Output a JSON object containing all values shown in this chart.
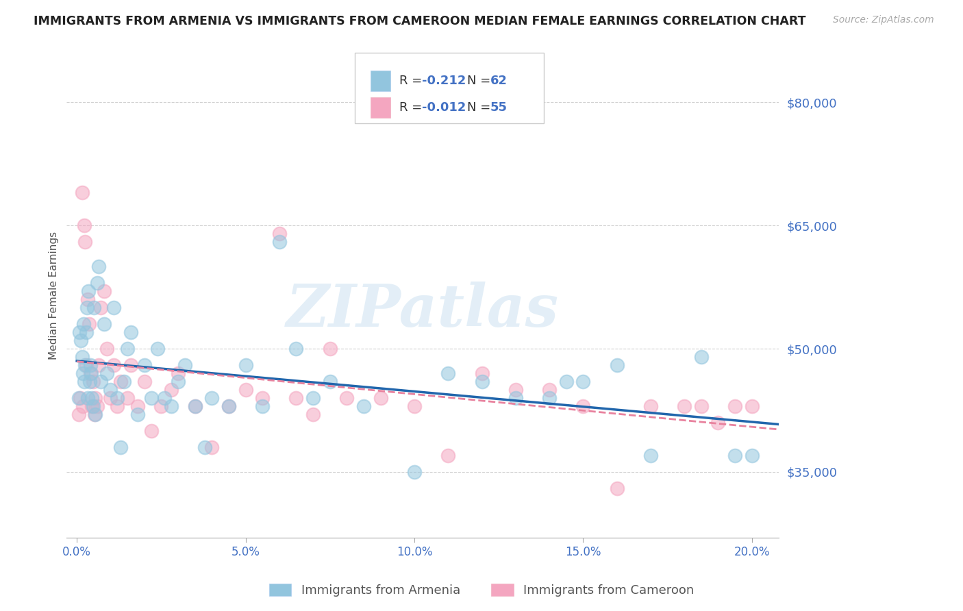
{
  "title": "IMMIGRANTS FROM ARMENIA VS IMMIGRANTS FROM CAMEROON MEDIAN FEMALE EARNINGS CORRELATION CHART",
  "source": "Source: ZipAtlas.com",
  "ylabel": "Median Female Earnings",
  "xlabel_ticks": [
    "0.0%",
    "5.0%",
    "10.0%",
    "15.0%",
    "20.0%"
  ],
  "xlabel_vals": [
    0.0,
    5.0,
    10.0,
    15.0,
    20.0
  ],
  "ytick_vals": [
    35000,
    50000,
    65000,
    80000
  ],
  "ytick_labels": [
    "$35,000",
    "$50,000",
    "$65,000",
    "$80,000"
  ],
  "ymin": 27000,
  "ymax": 86000,
  "xmin": -0.3,
  "xmax": 20.8,
  "armenia_color": "#92c5de",
  "cameroon_color": "#f4a6c0",
  "armenia_line_color": "#2166ac",
  "cameroon_line_color": "#e8829e",
  "armenia_R": -0.212,
  "armenia_N": 62,
  "cameroon_R": -0.012,
  "cameroon_N": 55,
  "legend_label_armenia": "Immigrants from Armenia",
  "legend_label_cameroon": "Immigrants from Cameroon",
  "watermark": "ZIPatlas",
  "legend_text_color": "#4472c4",
  "armenia_scatter_x": [
    0.05,
    0.08,
    0.12,
    0.15,
    0.18,
    0.2,
    0.22,
    0.25,
    0.28,
    0.3,
    0.32,
    0.35,
    0.38,
    0.4,
    0.42,
    0.45,
    0.48,
    0.5,
    0.55,
    0.6,
    0.65,
    0.7,
    0.8,
    0.9,
    1.0,
    1.1,
    1.2,
    1.3,
    1.4,
    1.5,
    1.6,
    1.8,
    2.0,
    2.2,
    2.4,
    2.6,
    2.8,
    3.0,
    3.2,
    3.5,
    3.8,
    4.0,
    4.5,
    5.0,
    5.5,
    6.0,
    6.5,
    7.0,
    7.5,
    8.5,
    10.0,
    11.0,
    12.0,
    13.0,
    14.0,
    14.5,
    15.0,
    16.0,
    17.0,
    18.5,
    19.5,
    20.0
  ],
  "armenia_scatter_y": [
    44000,
    52000,
    51000,
    49000,
    47000,
    53000,
    46000,
    48000,
    52000,
    55000,
    44000,
    57000,
    46000,
    48000,
    47000,
    44000,
    43000,
    55000,
    42000,
    58000,
    60000,
    46000,
    53000,
    47000,
    45000,
    55000,
    44000,
    38000,
    46000,
    50000,
    52000,
    42000,
    48000,
    44000,
    50000,
    44000,
    43000,
    46000,
    48000,
    43000,
    38000,
    44000,
    43000,
    48000,
    43000,
    63000,
    50000,
    44000,
    46000,
    43000,
    35000,
    47000,
    46000,
    44000,
    44000,
    46000,
    46000,
    48000,
    37000,
    49000,
    37000,
    37000
  ],
  "cameroon_scatter_x": [
    0.05,
    0.1,
    0.15,
    0.18,
    0.22,
    0.25,
    0.28,
    0.32,
    0.36,
    0.4,
    0.44,
    0.48,
    0.52,
    0.55,
    0.6,
    0.65,
    0.7,
    0.8,
    0.9,
    1.0,
    1.1,
    1.2,
    1.3,
    1.5,
    1.6,
    1.8,
    2.0,
    2.2,
    2.5,
    2.8,
    3.0,
    3.5,
    4.0,
    4.5,
    5.0,
    5.5,
    6.0,
    6.5,
    7.0,
    7.5,
    8.0,
    9.0,
    10.0,
    11.0,
    12.0,
    13.0,
    14.0,
    15.0,
    16.0,
    17.0,
    18.0,
    18.5,
    19.0,
    19.5,
    20.0
  ],
  "cameroon_scatter_y": [
    42000,
    44000,
    69000,
    43000,
    65000,
    63000,
    48000,
    56000,
    53000,
    47000,
    43000,
    46000,
    42000,
    44000,
    43000,
    48000,
    55000,
    57000,
    50000,
    44000,
    48000,
    43000,
    46000,
    44000,
    48000,
    43000,
    46000,
    40000,
    43000,
    45000,
    47000,
    43000,
    38000,
    43000,
    45000,
    44000,
    64000,
    44000,
    42000,
    50000,
    44000,
    44000,
    43000,
    37000,
    47000,
    45000,
    45000,
    43000,
    33000,
    43000,
    43000,
    43000,
    41000,
    43000,
    43000
  ]
}
